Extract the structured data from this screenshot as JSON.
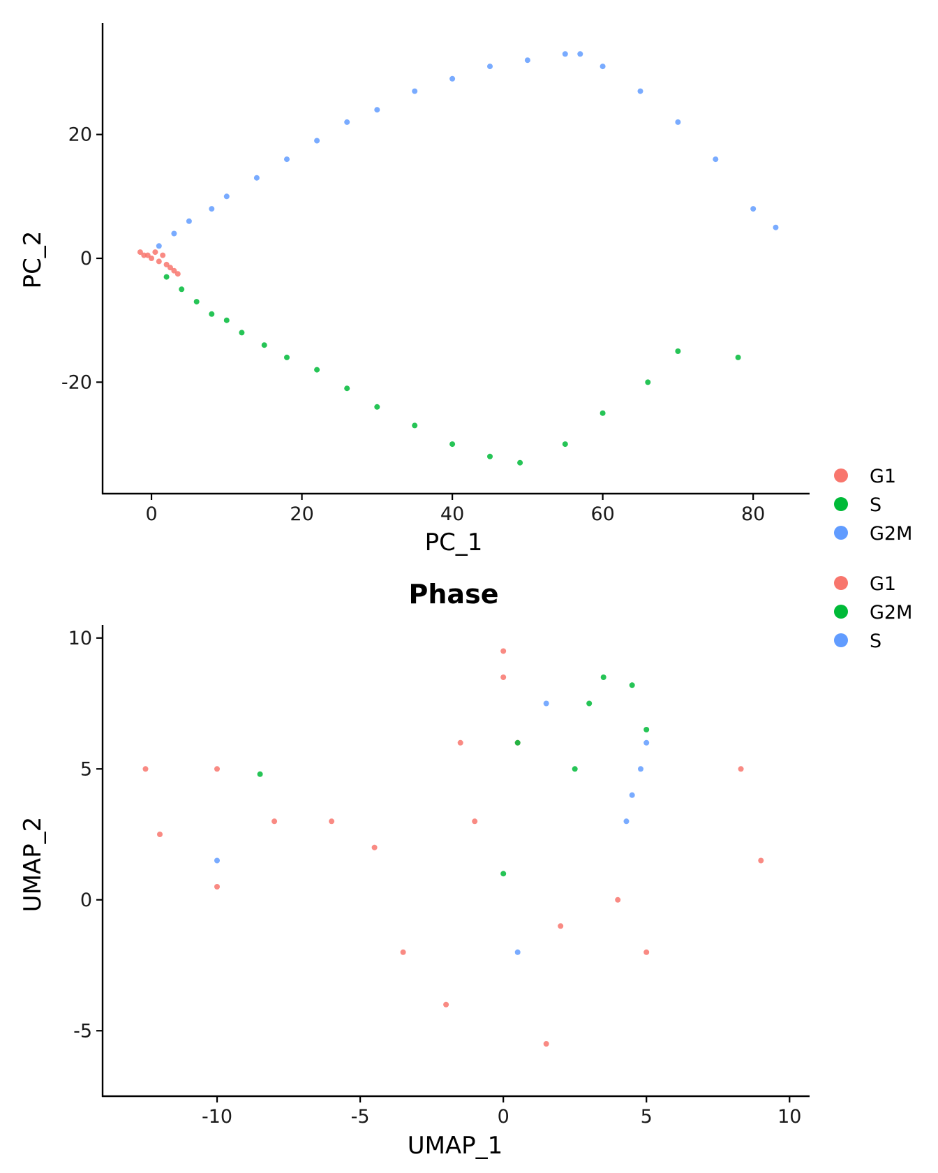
{
  "chart_data": [
    {
      "type": "scatter",
      "title": "",
      "xlabel": "PC_1",
      "ylabel": "PC_2",
      "xlim": [
        -6.5,
        87.5
      ],
      "ylim": [
        -38,
        38
      ],
      "xticks": [
        0,
        20,
        40,
        60,
        80
      ],
      "yticks": [
        -20,
        0,
        20
      ],
      "grid": false,
      "legend": {
        "placement": "right",
        "entries": [
          {
            "label": "G1",
            "color": "#F8766D"
          },
          {
            "label": "S",
            "color": "#00BA38"
          },
          {
            "label": "G2M",
            "color": "#619CFF"
          }
        ]
      },
      "series": [
        {
          "name": "G1",
          "color": "#F8766D",
          "x": [
            -1.5,
            -1,
            0,
            1,
            2,
            3,
            3.5,
            0.5,
            -0.5,
            1.5,
            2.5
          ],
          "y": [
            1,
            0.5,
            0,
            -0.5,
            -1,
            -2,
            -2.5,
            1,
            0.5,
            0.5,
            -1.5
          ]
        },
        {
          "name": "S",
          "color": "#00BA38",
          "x": [
            2,
            4,
            6,
            8,
            10,
            12,
            15,
            18,
            22,
            26,
            30,
            35,
            40,
            45,
            49,
            55,
            60,
            66,
            70,
            78
          ],
          "y": [
            -3,
            -5,
            -7,
            -9,
            -10,
            -12,
            -14,
            -16,
            -18,
            -21,
            -24,
            -27,
            -30,
            -32,
            -33,
            -30,
            -25,
            -20,
            -15,
            -16
          ]
        },
        {
          "name": "G2M",
          "color": "#619CFF",
          "x": [
            1,
            3,
            5,
            8,
            10,
            14,
            18,
            22,
            26,
            30,
            35,
            40,
            45,
            50,
            55,
            57,
            60,
            65,
            70,
            75,
            80,
            83
          ],
          "y": [
            2,
            4,
            6,
            8,
            10,
            13,
            16,
            19,
            22,
            24,
            27,
            29,
            31,
            32,
            33,
            33,
            31,
            27,
            22,
            16,
            8,
            5
          ]
        }
      ]
    },
    {
      "type": "scatter",
      "title": "Phase",
      "xlabel": "UMAP_1",
      "ylabel": "UMAP_2",
      "xlim": [
        -14,
        10.7
      ],
      "ylim": [
        -7.5,
        10.5
      ],
      "xticks": [
        -10,
        -5,
        0,
        5,
        10
      ],
      "yticks": [
        -5,
        0,
        5,
        10
      ],
      "grid": false,
      "legend": {
        "placement": "right",
        "entries": [
          {
            "label": "G1",
            "color": "#F8766D"
          },
          {
            "label": "G2M",
            "color": "#00BA38"
          },
          {
            "label": "S",
            "color": "#619CFF"
          }
        ]
      },
      "series": [
        {
          "name": "G1",
          "color": "#F8766D",
          "x": [
            -12.5,
            -12,
            -10,
            -10,
            -8,
            -6,
            -4.5,
            -3.5,
            -1,
            0,
            0,
            0.5,
            2,
            4,
            5,
            1.5,
            -2,
            -1.5,
            8.3,
            9
          ],
          "y": [
            5,
            2.5,
            5,
            0.5,
            3,
            3,
            2,
            -2,
            3,
            8.5,
            9.5,
            6,
            -1,
            0,
            -2,
            -5.5,
            -4,
            6,
            5,
            1.5
          ]
        },
        {
          "name": "G2M",
          "color": "#00BA38",
          "x": [
            2.5,
            3,
            3.5,
            4.5,
            5,
            -8.5,
            0,
            0.5
          ],
          "y": [
            5,
            7.5,
            8.5,
            8.2,
            6.5,
            4.8,
            1,
            6
          ]
        },
        {
          "name": "S",
          "color": "#619CFF",
          "x": [
            4.3,
            4.5,
            4.8,
            5,
            1.5,
            -10,
            0.5
          ],
          "y": [
            3,
            4,
            5,
            6,
            7.5,
            1.5,
            -2
          ]
        }
      ]
    }
  ]
}
